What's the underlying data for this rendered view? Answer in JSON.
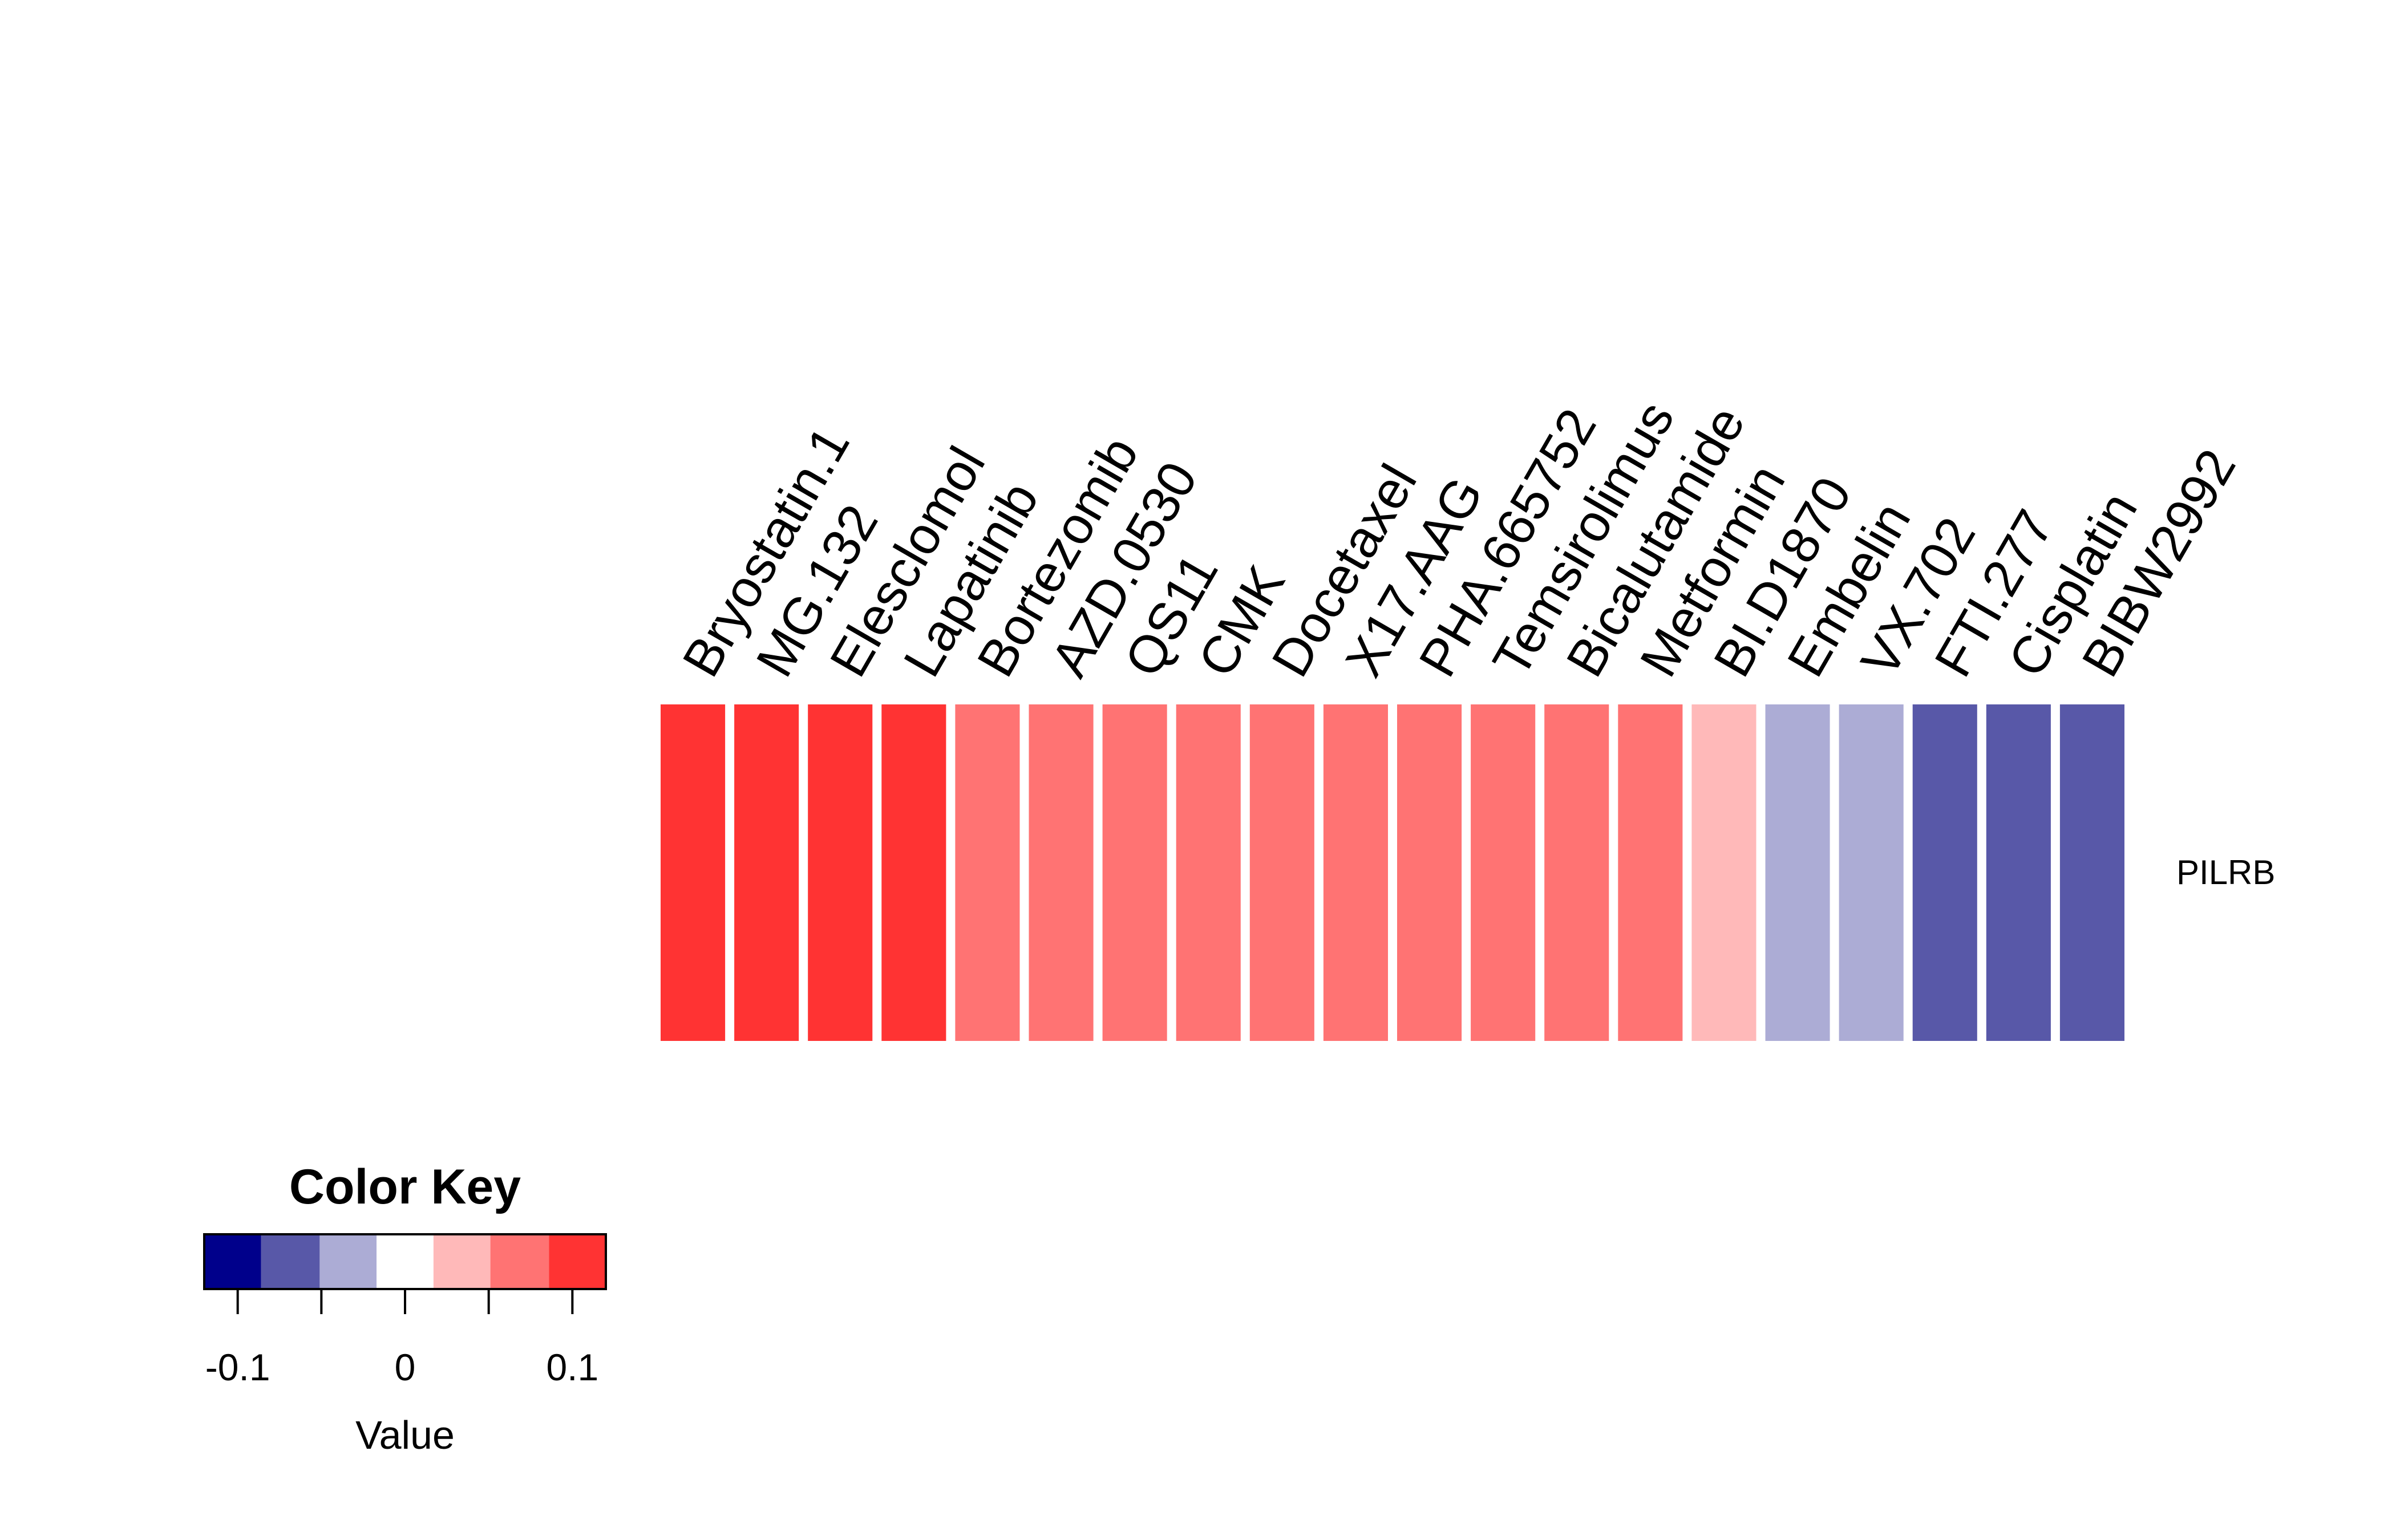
{
  "chart_data": {
    "type": "heatmap",
    "rows": [
      "PILRB"
    ],
    "columns": [
      "Bryostatin.1",
      "MG.132",
      "Elesclomol",
      "Lapatinib",
      "Bortezomib",
      "AZD.0530",
      "QS11",
      "CMK",
      "Docetaxel",
      "X17.AAG",
      "PHA.665752",
      "Temsirolimus",
      "Bicalutamide",
      "Metformin",
      "BI.D1870",
      "Embelin",
      "VX.702",
      "FTI.277",
      "Cisplatin",
      "BIBW2992"
    ],
    "values": [
      [
        0.11,
        0.11,
        0.11,
        0.11,
        0.07,
        0.07,
        0.07,
        0.07,
        0.07,
        0.07,
        0.07,
        0.07,
        0.07,
        0.07,
        0.03,
        -0.03,
        -0.03,
        -0.07,
        -0.07,
        -0.07
      ]
    ],
    "color_key": {
      "title": "Color Key",
      "xlabel": "Value",
      "range": [
        -0.12,
        0.12
      ],
      "breaks": [
        -0.12,
        -0.086,
        -0.051,
        -0.017,
        0.017,
        0.051,
        0.086,
        0.12
      ],
      "colors": [
        "#00008B",
        "#5858A8",
        "#ACACD5",
        "#FFFFFF",
        "#FFB9B9",
        "#FF7373",
        "#FF3333"
      ],
      "ticks": [
        -0.1,
        -0.05,
        0,
        0.05,
        0.1
      ],
      "tick_labels": [
        "-0.1",
        "",
        "0",
        "",
        "0.1"
      ]
    }
  }
}
